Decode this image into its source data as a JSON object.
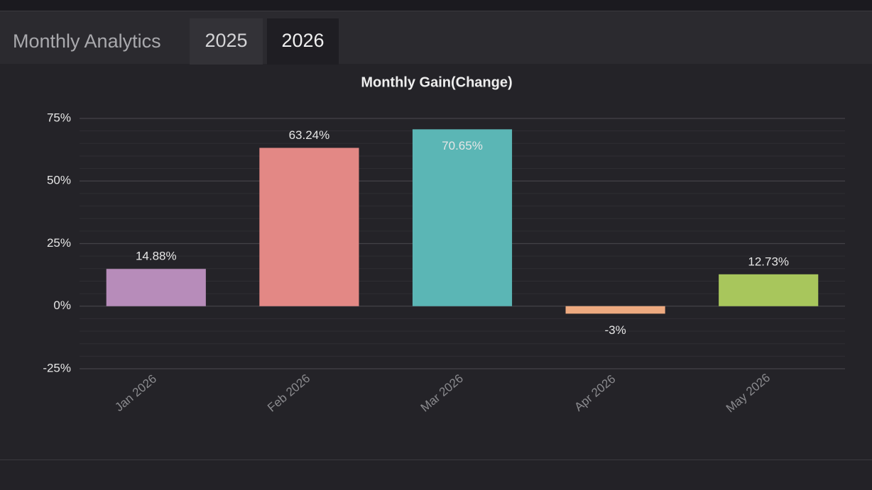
{
  "header": {
    "title": "Monthly Analytics",
    "tabs": [
      "2025",
      "2026"
    ]
  },
  "chart_data": {
    "type": "bar",
    "title": "Monthly Gain(Change)",
    "categories": [
      "Jan 2026",
      "Feb 2026",
      "Mar 2026",
      "Apr 2026",
      "May 2026"
    ],
    "values": [
      14.88,
      63.24,
      70.65,
      -3,
      12.73
    ],
    "value_labels": [
      "14.88%",
      "63.24%",
      "70.65%",
      "-3%",
      "12.73%"
    ],
    "colors": [
      "#b78cba",
      "#e38885",
      "#5bb6b5",
      "#eeaa80",
      "#a8c65c"
    ],
    "ylim": [
      -25,
      75
    ],
    "yticks": [
      {
        "value": -25,
        "label": "-25%"
      },
      {
        "value": 0,
        "label": "0%"
      },
      {
        "value": 25,
        "label": "25%"
      },
      {
        "value": 50,
        "label": "50%"
      },
      {
        "value": 75,
        "label": "75%"
      }
    ],
    "grid": true
  }
}
